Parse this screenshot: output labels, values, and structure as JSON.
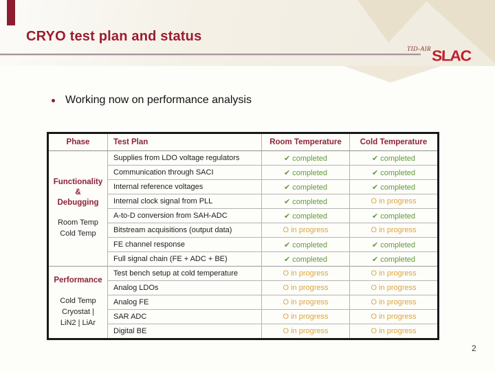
{
  "slide": {
    "title": "CRYO test plan and status",
    "bullet": "Working now on performance analysis",
    "page_number": "2",
    "brand": {
      "group": "TID-AIR",
      "logo": "SLAC"
    }
  },
  "colors": {
    "accent_maroon": "#9c1b2f",
    "accent_bar": "#8c1d2f",
    "logo_red": "#c01f2e",
    "header_cream": "#f1ece0",
    "deco_beige": "#e8e0cb",
    "rule_mauve": "#a5939c",
    "status_completed_green": "#5f9a35",
    "status_progress_orange": "#dba43f",
    "table_border_black": "#191919",
    "grid_gray": "#b3b3b3"
  },
  "table": {
    "headers": [
      "Phase",
      "Test Plan",
      "Room Temperature",
      "Cold Temperature"
    ],
    "groups": [
      {
        "phase_lines": [
          "Functionality",
          "&",
          "Debugging"
        ],
        "phase_sub": [
          "Room Temp",
          "Cold Temp"
        ],
        "rows": [
          {
            "plan": "Supplies from LDO voltage regulators",
            "room": "✔ completed",
            "cold": "✔ completed"
          },
          {
            "plan": "Communication through SACI",
            "room": "✔ completed",
            "cold": "✔ completed"
          },
          {
            "plan": "Internal reference voltages",
            "room": "✔ completed",
            "cold": "✔ completed"
          },
          {
            "plan": "Internal clock signal from PLL",
            "room": "✔ completed",
            "cold": "O in progress"
          },
          {
            "plan": "A-to-D conversion from SAH-ADC",
            "room": "✔ completed",
            "cold": "✔ completed"
          },
          {
            "plan": "Bitstream acquisitions (output data)",
            "room": "O in progress",
            "cold": "O in progress"
          },
          {
            "plan": "FE channel response",
            "room": "✔ completed",
            "cold": "✔ completed"
          },
          {
            "plan": "Full signal chain (FE + ADC + BE)",
            "room": "✔ completed",
            "cold": "✔ completed"
          }
        ]
      },
      {
        "phase_lines": [
          "Performance"
        ],
        "phase_sub": [
          "Cold Temp",
          "Cryostat |",
          "LiN2 | LiAr"
        ],
        "rows": [
          {
            "plan": "Test bench setup at cold temperature",
            "room": "O in progress",
            "cold": "O in progress"
          },
          {
            "plan": "Analog LDOs",
            "room": "O in progress",
            "cold": "O in progress"
          },
          {
            "plan": "Analog FE",
            "room": "O in progress",
            "cold": "O in progress"
          },
          {
            "plan": "SAR ADC",
            "room": "O in progress",
            "cold": "O in progress"
          },
          {
            "plan": "Digital BE",
            "room": "O in progress",
            "cold": "O in progress"
          }
        ]
      }
    ]
  }
}
